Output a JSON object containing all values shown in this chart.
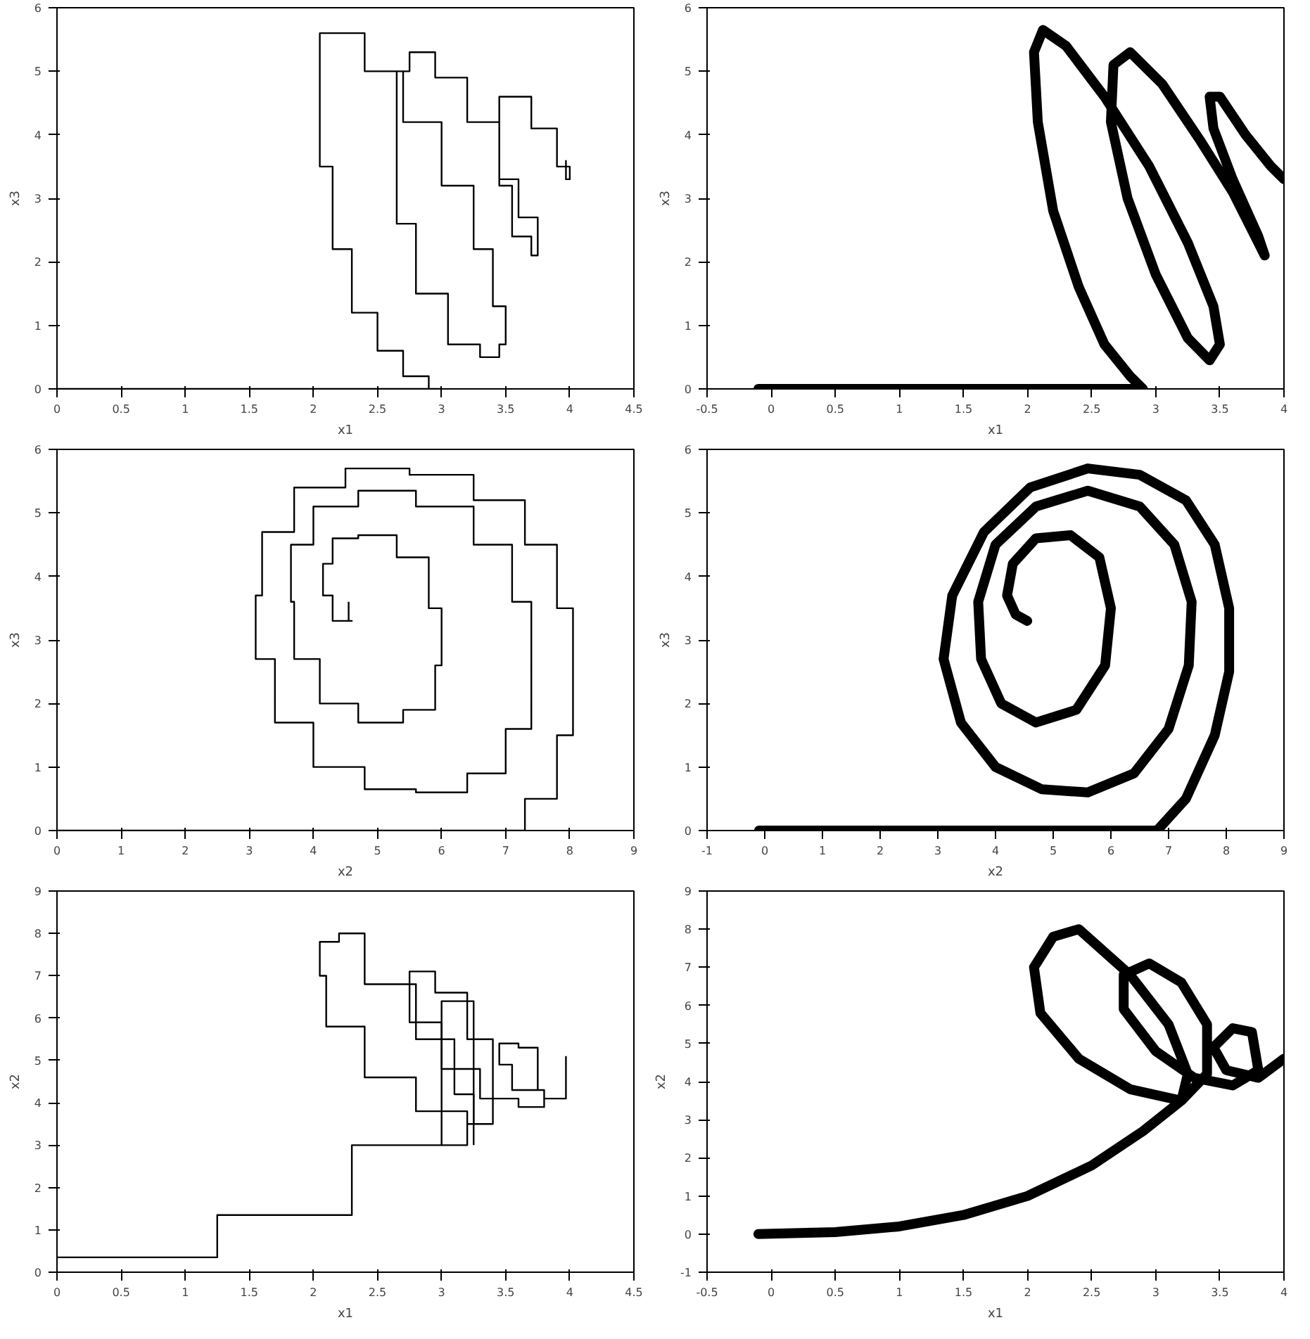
{
  "chart_data": [
    {
      "type": "step",
      "xlabel": "x1",
      "ylabel": "x3",
      "xlim": [
        0,
        4.5
      ],
      "ylim": [
        0,
        6
      ],
      "xticks": [
        0,
        0.5,
        1,
        1.5,
        2,
        2.5,
        3,
        3.5,
        4,
        4.5
      ],
      "yticks": [
        0,
        1,
        2,
        3,
        4,
        5,
        6
      ],
      "grid": false,
      "series": [
        {
          "color": "#000000",
          "x": [
            0,
            1,
            2,
            3,
            2.9,
            2.7,
            2.5,
            2.3,
            2.15,
            2.05,
            2.05,
            2.2,
            2.4,
            2.7,
            3.0,
            3.25,
            3.4,
            3.5,
            3.45,
            3.3,
            3.05,
            2.8,
            2.65,
            2.65,
            2.75,
            2.95,
            3.2,
            3.45,
            3.6,
            3.75,
            3.7,
            3.55,
            3.45,
            3.45,
            3.55,
            3.7,
            3.9,
            4.0,
            3.97
          ],
          "values": [
            0,
            0,
            0,
            0,
            0.2,
            0.6,
            1.2,
            2.2,
            3.5,
            4.8,
            5.6,
            5.6,
            5.0,
            4.2,
            3.2,
            2.2,
            1.3,
            0.7,
            0.5,
            0.7,
            1.5,
            2.6,
            3.8,
            5.0,
            5.3,
            4.9,
            4.2,
            3.3,
            2.7,
            2.1,
            2.4,
            3.2,
            4.0,
            4.6,
            4.6,
            4.1,
            3.5,
            3.3,
            3.6
          ]
        }
      ]
    },
    {
      "type": "line",
      "xlabel": "x1",
      "ylabel": "x3",
      "xlim": [
        -0.5,
        4
      ],
      "ylim": [
        0,
        6
      ],
      "xticks": [
        -0.5,
        0,
        0.5,
        1,
        1.5,
        2,
        2.5,
        3,
        3.5,
        4
      ],
      "yticks": [
        0,
        1,
        2,
        3,
        4,
        5,
        6
      ],
      "grid": false,
      "series": [
        {
          "color": "#000000",
          "x": [
            -0.1,
            1,
            2,
            2.9,
            2.8,
            2.6,
            2.4,
            2.2,
            2.08,
            2.05,
            2.12,
            2.3,
            2.6,
            2.95,
            3.25,
            3.45,
            3.5,
            3.42,
            3.25,
            3.0,
            2.78,
            2.65,
            2.67,
            2.8,
            3.05,
            3.35,
            3.6,
            3.85,
            3.8,
            3.6,
            3.45,
            3.42,
            3.5,
            3.7,
            3.9,
            4.0
          ],
          "values": [
            0,
            0,
            0,
            0,
            0.2,
            0.7,
            1.6,
            2.8,
            4.2,
            5.3,
            5.65,
            5.4,
            4.6,
            3.5,
            2.3,
            1.3,
            0.7,
            0.45,
            0.8,
            1.8,
            3.0,
            4.2,
            5.1,
            5.3,
            4.8,
            3.9,
            3.1,
            2.1,
            2.4,
            3.3,
            4.1,
            4.6,
            4.6,
            4.0,
            3.5,
            3.3
          ]
        }
      ]
    },
    {
      "type": "step",
      "xlabel": "x2",
      "ylabel": "x3",
      "xlim": [
        0,
        9
      ],
      "ylim": [
        0,
        6
      ],
      "xticks": [
        0,
        1,
        2,
        3,
        4,
        5,
        6,
        7,
        8,
        9
      ],
      "yticks": [
        0,
        1,
        2,
        3,
        4,
        5,
        6
      ],
      "grid": false,
      "series": [
        {
          "color": "#000000",
          "x": [
            0,
            2,
            4,
            6,
            6.8,
            7.3,
            7.8,
            8.05,
            8.05,
            7.8,
            7.3,
            6.5,
            5.5,
            4.5,
            3.7,
            3.2,
            3.1,
            3.4,
            4.0,
            4.8,
            5.6,
            6.4,
            7.0,
            7.4,
            7.4,
            7.1,
            6.5,
            5.6,
            4.7,
            4.0,
            3.65,
            3.7,
            4.1,
            4.7,
            5.4,
            5.9,
            6.0,
            5.8,
            5.3,
            4.7,
            4.3,
            4.15,
            4.3,
            4.6,
            4.55
          ],
          "values": [
            0,
            0,
            0,
            0,
            0,
            0.5,
            1.5,
            2.5,
            3.5,
            4.5,
            5.2,
            5.6,
            5.7,
            5.4,
            4.7,
            3.7,
            2.7,
            1.7,
            1.0,
            0.65,
            0.6,
            0.9,
            1.6,
            2.6,
            3.6,
            4.5,
            5.1,
            5.35,
            5.1,
            4.5,
            3.6,
            2.7,
            2.0,
            1.7,
            1.9,
            2.6,
            3.5,
            4.3,
            4.65,
            4.6,
            4.2,
            3.7,
            3.3,
            3.3,
            3.6
          ]
        }
      ]
    },
    {
      "type": "line",
      "xlabel": "x2",
      "ylabel": "x3",
      "xlim": [
        -1,
        9
      ],
      "ylim": [
        0,
        6
      ],
      "xticks": [
        -1,
        0,
        1,
        2,
        3,
        4,
        5,
        6,
        7,
        8,
        9
      ],
      "yticks": [
        0,
        1,
        2,
        3,
        4,
        5,
        6
      ],
      "grid": false,
      "series": [
        {
          "color": "#000000",
          "x": [
            -0.1,
            2,
            4,
            6,
            6.8,
            7.3,
            7.8,
            8.05,
            8.05,
            7.8,
            7.3,
            6.5,
            5.6,
            4.6,
            3.8,
            3.25,
            3.1,
            3.4,
            4.0,
            4.8,
            5.6,
            6.4,
            7.0,
            7.35,
            7.4,
            7.1,
            6.5,
            5.6,
            4.7,
            4.0,
            3.7,
            3.75,
            4.1,
            4.7,
            5.4,
            5.9,
            6.0,
            5.8,
            5.3,
            4.7,
            4.3,
            4.2,
            4.35,
            4.55
          ],
          "values": [
            0,
            0,
            0,
            0,
            0,
            0.5,
            1.5,
            2.5,
            3.5,
            4.5,
            5.2,
            5.6,
            5.7,
            5.4,
            4.7,
            3.7,
            2.7,
            1.7,
            1.0,
            0.65,
            0.6,
            0.9,
            1.6,
            2.6,
            3.6,
            4.5,
            5.1,
            5.35,
            5.1,
            4.5,
            3.6,
            2.7,
            2.0,
            1.7,
            1.9,
            2.6,
            3.5,
            4.3,
            4.65,
            4.6,
            4.2,
            3.7,
            3.4,
            3.3
          ]
        }
      ]
    },
    {
      "type": "step",
      "xlabel": "x1",
      "ylabel": "x2",
      "xlim": [
        0,
        4.5
      ],
      "ylim": [
        0,
        9
      ],
      "xticks": [
        0,
        0.5,
        1,
        1.5,
        2,
        2.5,
        3,
        3.5,
        4,
        4.5
      ],
      "yticks": [
        0,
        1,
        2,
        3,
        4,
        5,
        6,
        7,
        8,
        9
      ],
      "grid": false,
      "series": [
        {
          "color": "#000000",
          "x": [
            0,
            1.25,
            2.3,
            3.0,
            3.25
          ],
          "values": [
            0.35,
            1.35,
            3.0,
            6.4,
            3.0
          ]
        },
        {
          "color": "#000000",
          "x": [
            3.0,
            3.2,
            3.25,
            3.1,
            2.8,
            2.4,
            2.2,
            2.05,
            2.1,
            2.4,
            2.8,
            3.2,
            3.4,
            3.4,
            3.2,
            2.95,
            2.75,
            2.75,
            3.0,
            3.3,
            3.6,
            3.8,
            3.75,
            3.6,
            3.45,
            3.55,
            3.8,
            3.97
          ],
          "values": [
            3.0,
            3.5,
            4.2,
            5.5,
            6.8,
            8.0,
            7.8,
            7.0,
            5.8,
            4.6,
            3.8,
            3.5,
            4.2,
            5.5,
            6.6,
            7.1,
            6.8,
            5.9,
            4.8,
            4.1,
            3.9,
            4.3,
            5.3,
            5.4,
            4.9,
            4.3,
            4.1,
            5.1
          ]
        }
      ]
    },
    {
      "type": "line",
      "xlabel": "x1",
      "ylabel": "x2",
      "xlim": [
        -0.5,
        4
      ],
      "ylim": [
        -1,
        9
      ],
      "xticks": [
        -0.5,
        0,
        0.5,
        1,
        1.5,
        2,
        2.5,
        3,
        3.5,
        4
      ],
      "yticks": [
        -1,
        0,
        1,
        2,
        3,
        4,
        5,
        6,
        7,
        8,
        9
      ],
      "grid": false,
      "series": [
        {
          "color": "#000000",
          "x": [
            -0.1,
            0.5,
            1.0,
            1.5,
            2.0,
            2.5,
            2.9,
            3.2,
            3.25,
            3.1,
            2.8,
            2.4,
            2.2,
            2.05,
            2.1,
            2.4,
            2.8,
            3.2,
            3.4,
            3.4,
            3.2,
            2.95,
            2.75,
            2.75,
            3.0,
            3.3,
            3.6,
            3.8,
            3.75,
            3.6,
            3.45,
            3.55,
            3.8,
            4.0
          ],
          "values": [
            0,
            0.05,
            0.2,
            0.5,
            1.0,
            1.8,
            2.7,
            3.5,
            4.2,
            5.5,
            6.8,
            8.0,
            7.8,
            7.0,
            5.8,
            4.6,
            3.8,
            3.5,
            4.2,
            5.5,
            6.6,
            7.1,
            6.8,
            5.9,
            4.8,
            4.1,
            3.9,
            4.3,
            5.3,
            5.4,
            4.9,
            4.3,
            4.1,
            4.6
          ]
        }
      ]
    }
  ]
}
